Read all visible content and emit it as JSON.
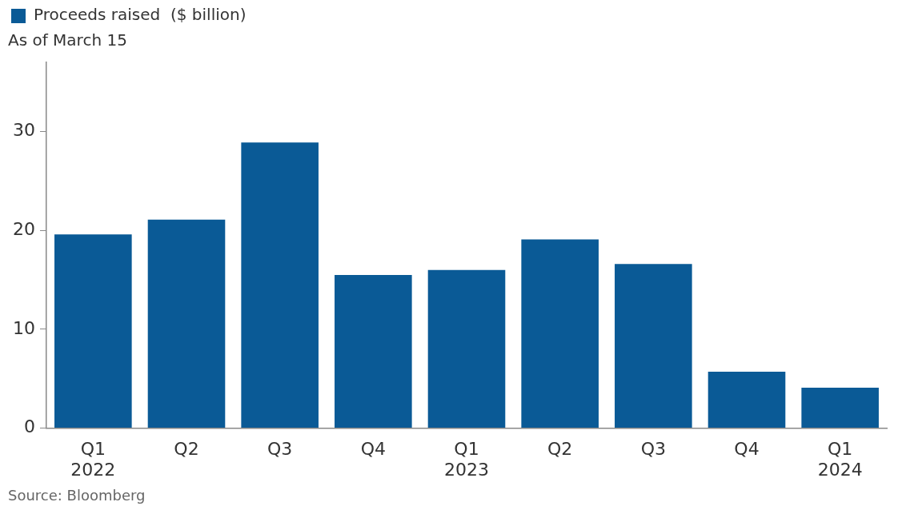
{
  "chart_data": {
    "type": "bar",
    "subtitle": "As of March 15",
    "source": "Source: Bloomberg",
    "categories": [
      "Q1 2022",
      "Q2",
      "Q3",
      "Q4",
      "Q1 2023",
      "Q2",
      "Q3",
      "Q4",
      "Q1 2024"
    ],
    "series": [
      {
        "name": "Proceeds raised  ($ billion)",
        "color": "#0a5a96",
        "values": [
          19.6,
          21.1,
          28.9,
          15.5,
          16.0,
          19.1,
          16.6,
          5.7,
          4.1
        ]
      }
    ],
    "ylim": [
      0,
      37
    ],
    "yticks": [
      0,
      10,
      20,
      30
    ],
    "grid": false,
    "legend": "top-left"
  }
}
